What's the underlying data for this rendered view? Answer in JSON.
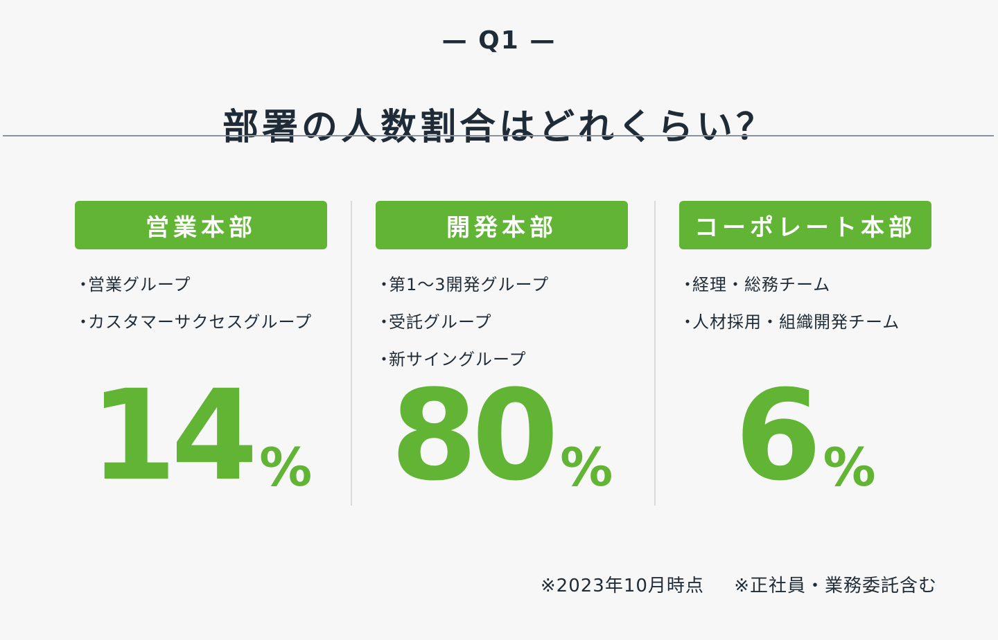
{
  "header": {
    "eyebrow": "— Q1 —",
    "title": "部署の人数割合はどれくらい？"
  },
  "departments": [
    {
      "name": "営業本部",
      "groups": [
        "営業グループ",
        "カスタマーサクセスグループ"
      ],
      "percent": "14",
      "unit": "%"
    },
    {
      "name": "開発本部",
      "groups": [
        "第1～3開発グループ",
        "受託グループ",
        "新サイングループ"
      ],
      "percent": "80",
      "unit": "%"
    },
    {
      "name": "コーポレート本部",
      "groups": [
        "経理・総務チーム",
        "人材採用・組織開発チーム"
      ],
      "percent": "6",
      "unit": "%"
    }
  ],
  "notes": [
    "※2023年10月時点",
    "※正社員・業務委託含む"
  ],
  "colors": {
    "accent": "#61b434",
    "text": "#1f2b36",
    "background": "#f7f7f7"
  }
}
